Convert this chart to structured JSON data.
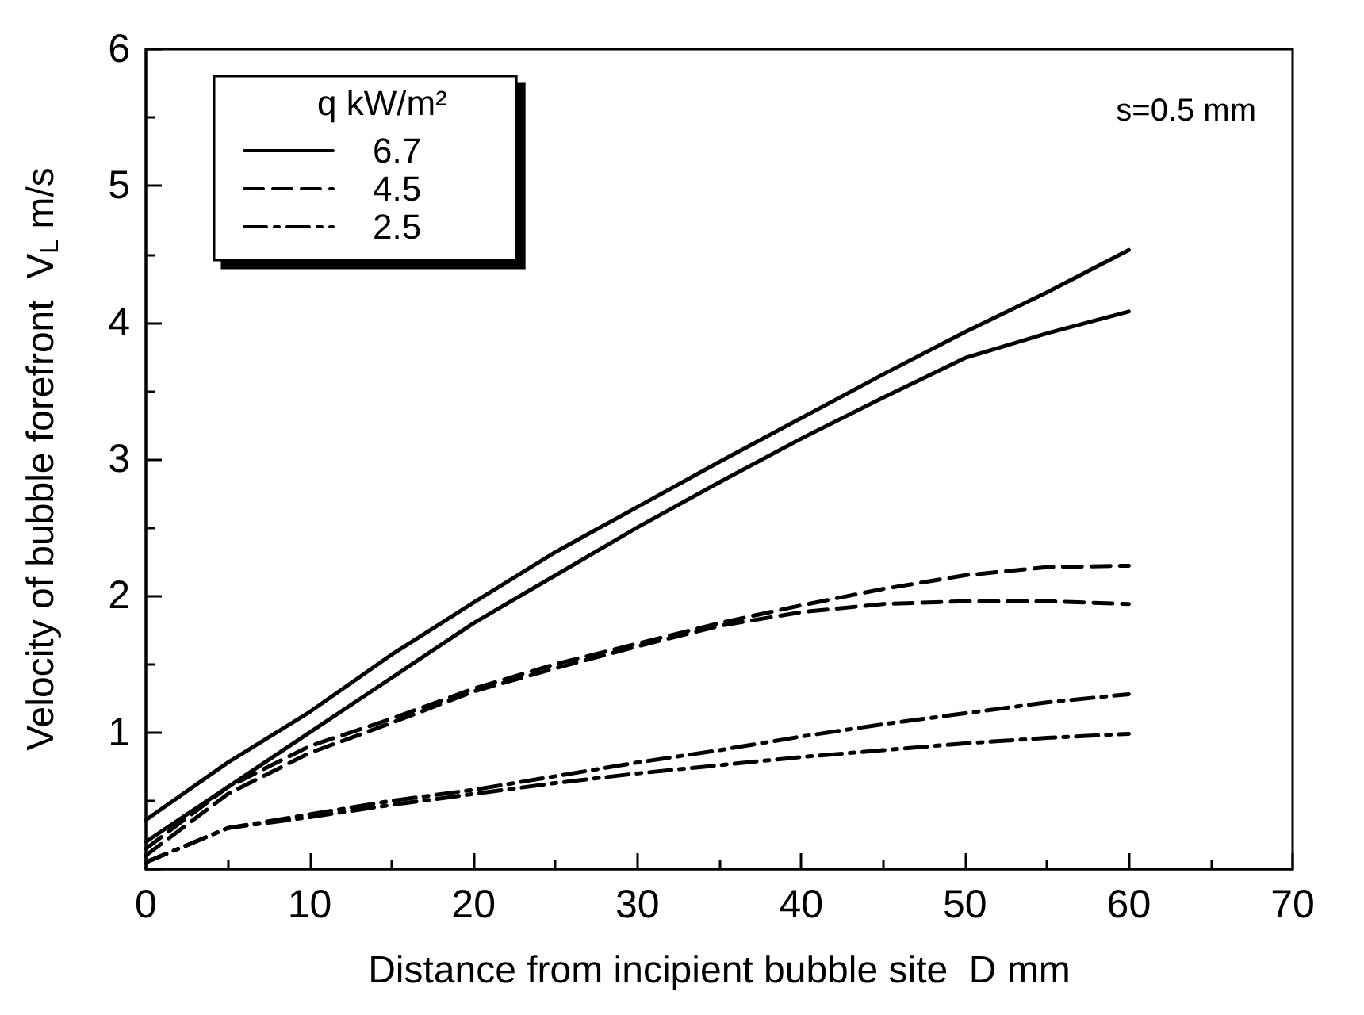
{
  "chart_data": {
    "type": "line",
    "xlabel": "Distance from incipient bubble site  D mm",
    "ylabel": "Velocity of bubble forefront  V$_{L}$ m/s",
    "legend_title": "q kW/m²",
    "annotations": [
      "s=0.5 mm"
    ],
    "x": [
      0,
      5,
      10,
      15,
      20,
      25,
      30,
      35,
      40,
      45,
      50,
      55,
      60
    ],
    "series": [
      {
        "name": "6.7",
        "color": "#000000",
        "line_style": "solid",
        "values": [
          0.36,
          0.78,
          1.15,
          1.57,
          1.95,
          2.32,
          2.65,
          2.98,
          3.3,
          3.62,
          3.93,
          4.22,
          4.53
        ]
      },
      {
        "color": "#000000",
        "line_style": "solid",
        "values": [
          0.2,
          0.6,
          1.0,
          1.4,
          1.8,
          2.15,
          2.5,
          2.83,
          3.15,
          3.45,
          3.74,
          3.92,
          4.08
        ]
      },
      {
        "name": "4.5",
        "color": "#000000",
        "line_style": "dashed",
        "values": [
          0.15,
          0.6,
          0.9,
          1.1,
          1.32,
          1.5,
          1.65,
          1.8,
          1.93,
          2.05,
          2.15,
          2.21,
          2.22
        ]
      },
      {
        "color": "#000000",
        "line_style": "dashed",
        "values": [
          0.1,
          0.55,
          0.85,
          1.07,
          1.3,
          1.47,
          1.63,
          1.78,
          1.88,
          1.94,
          1.96,
          1.96,
          1.94
        ]
      },
      {
        "name": "2.5",
        "color": "#000000",
        "line_style": "dashdot",
        "values": [
          0.05,
          0.3,
          0.4,
          0.5,
          0.58,
          0.68,
          0.78,
          0.87,
          0.97,
          1.06,
          1.14,
          1.22,
          1.28
        ]
      },
      {
        "color": "#000000",
        "line_style": "dashdot",
        "values": [
          0.05,
          0.3,
          0.38,
          0.47,
          0.55,
          0.63,
          0.7,
          0.76,
          0.82,
          0.87,
          0.92,
          0.96,
          0.99
        ]
      }
    ],
    "xlim": [
      0,
      70
    ],
    "xticks": [
      0,
      10,
      20,
      30,
      40,
      50,
      60,
      70
    ],
    "ylim": [
      0,
      6
    ],
    "yticks": [
      {
        "value": 0,
        "label": null
      },
      1,
      2,
      3,
      4,
      5,
      6
    ],
    "grid": false,
    "legend": "top left",
    "marker": "none"
  }
}
